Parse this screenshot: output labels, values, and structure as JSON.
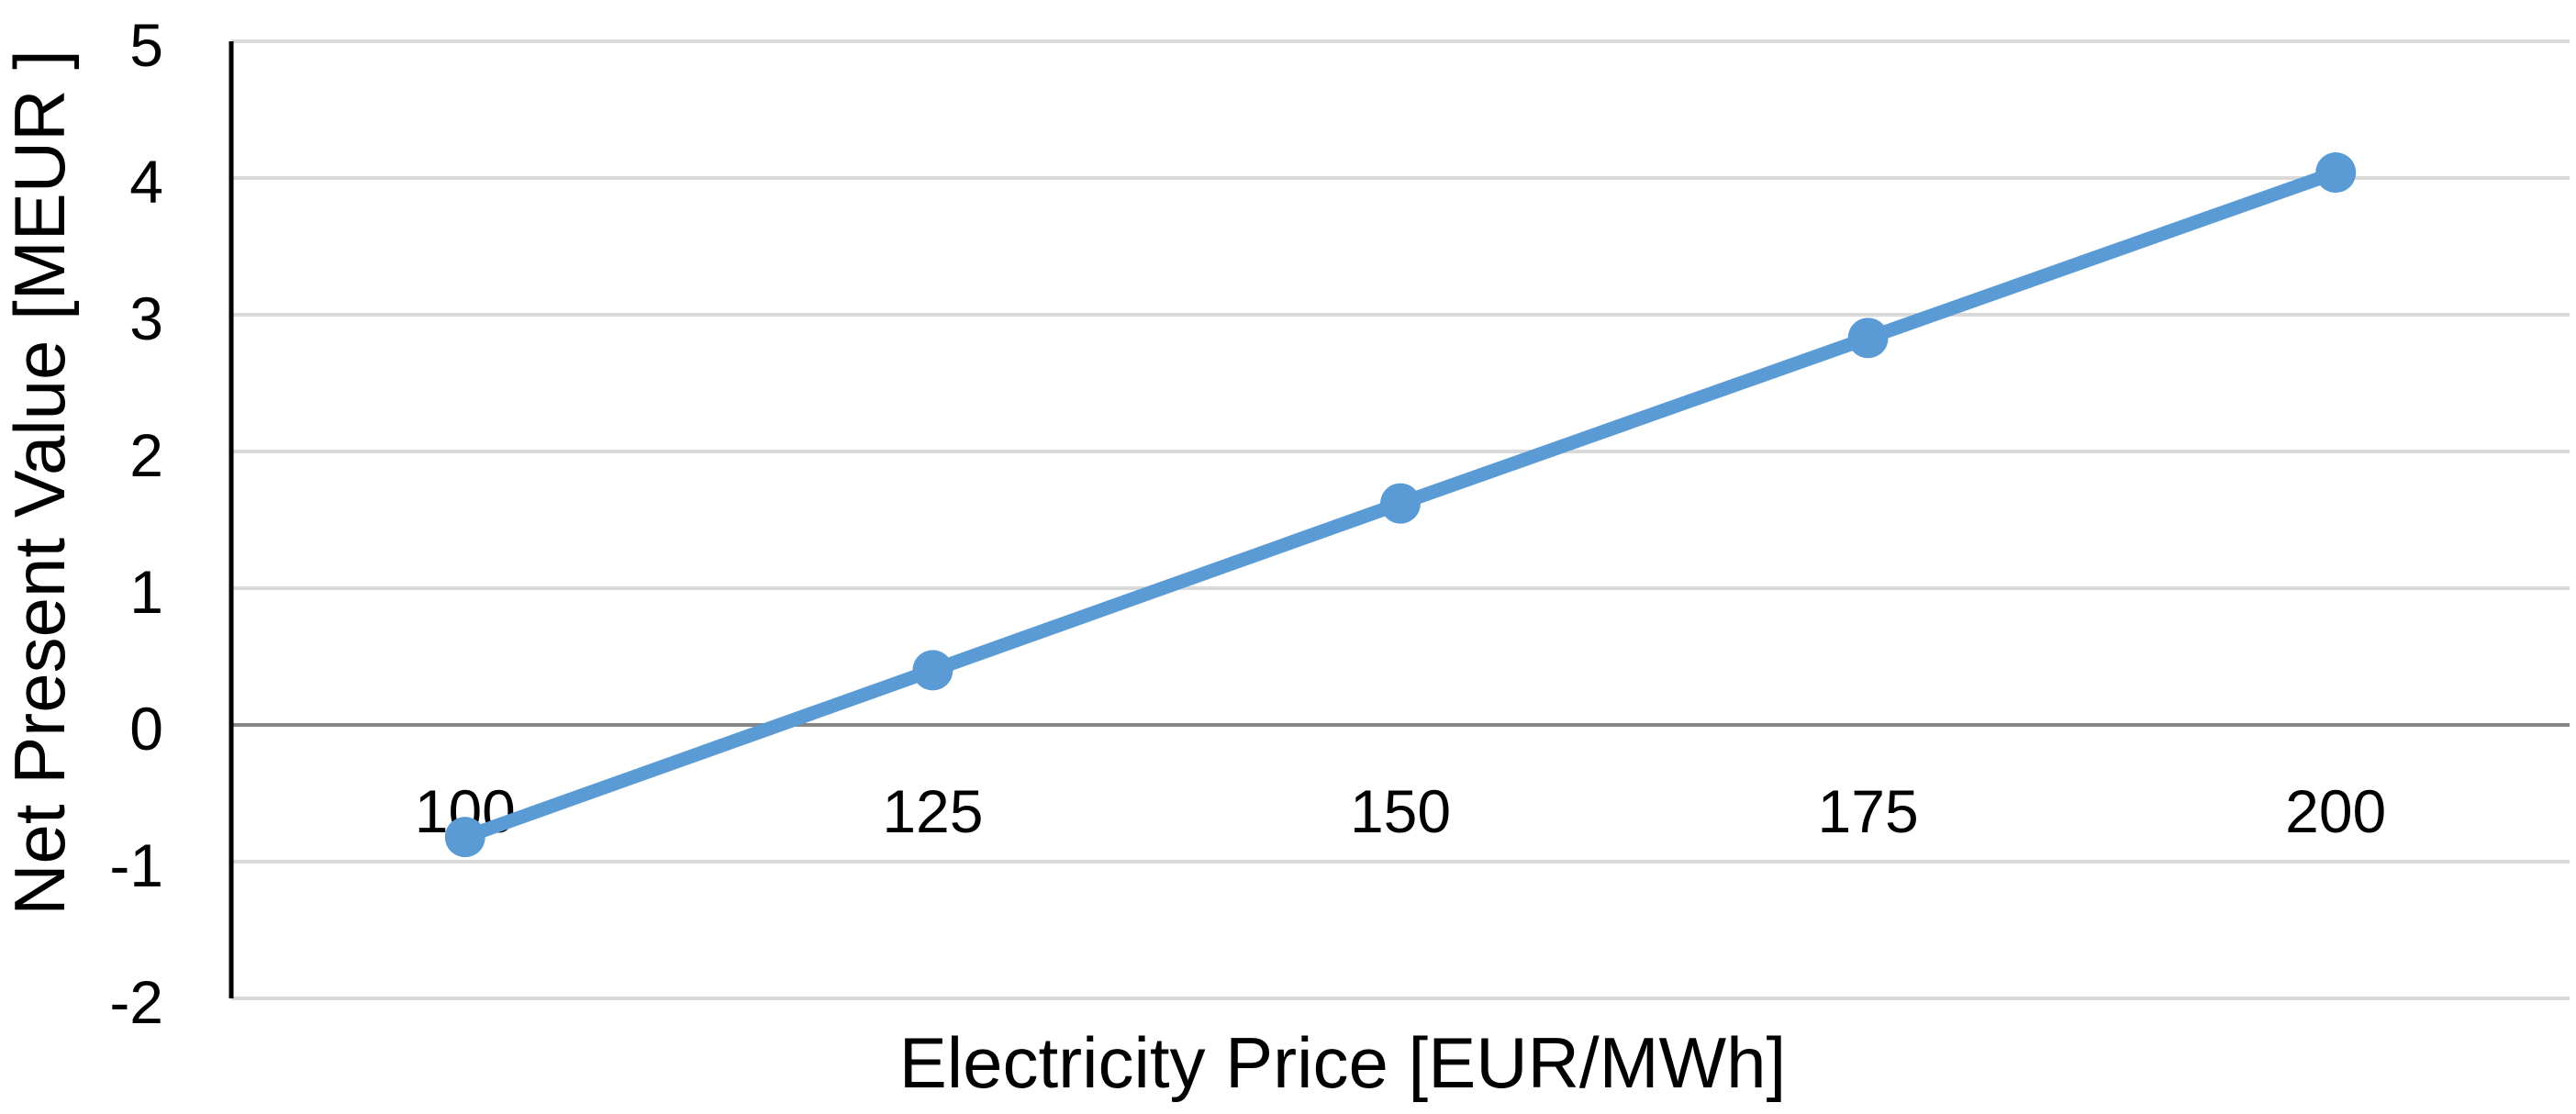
{
  "chart_data": {
    "type": "line",
    "title": "",
    "xlabel": "Electricity Price [EUR/MWh]",
    "ylabel": "Net Present Value [MEUR ]",
    "categories": [
      "100",
      "125",
      "150",
      "175",
      "200"
    ],
    "series": [
      {
        "values": [
          -0.82,
          0.4,
          1.62,
          2.83,
          4.04
        ],
        "color": "#5b9bd5"
      }
    ],
    "ylim": [
      -2,
      5
    ],
    "yticks": [
      "-2",
      "-1",
      "0",
      "1",
      "2",
      "3",
      "4",
      "5"
    ],
    "grid": true,
    "legend": "none",
    "colors": {
      "line": "#5b9bd5",
      "grid": "#d9d9d9",
      "zero_line": "#868686",
      "axis": "#000000"
    }
  }
}
